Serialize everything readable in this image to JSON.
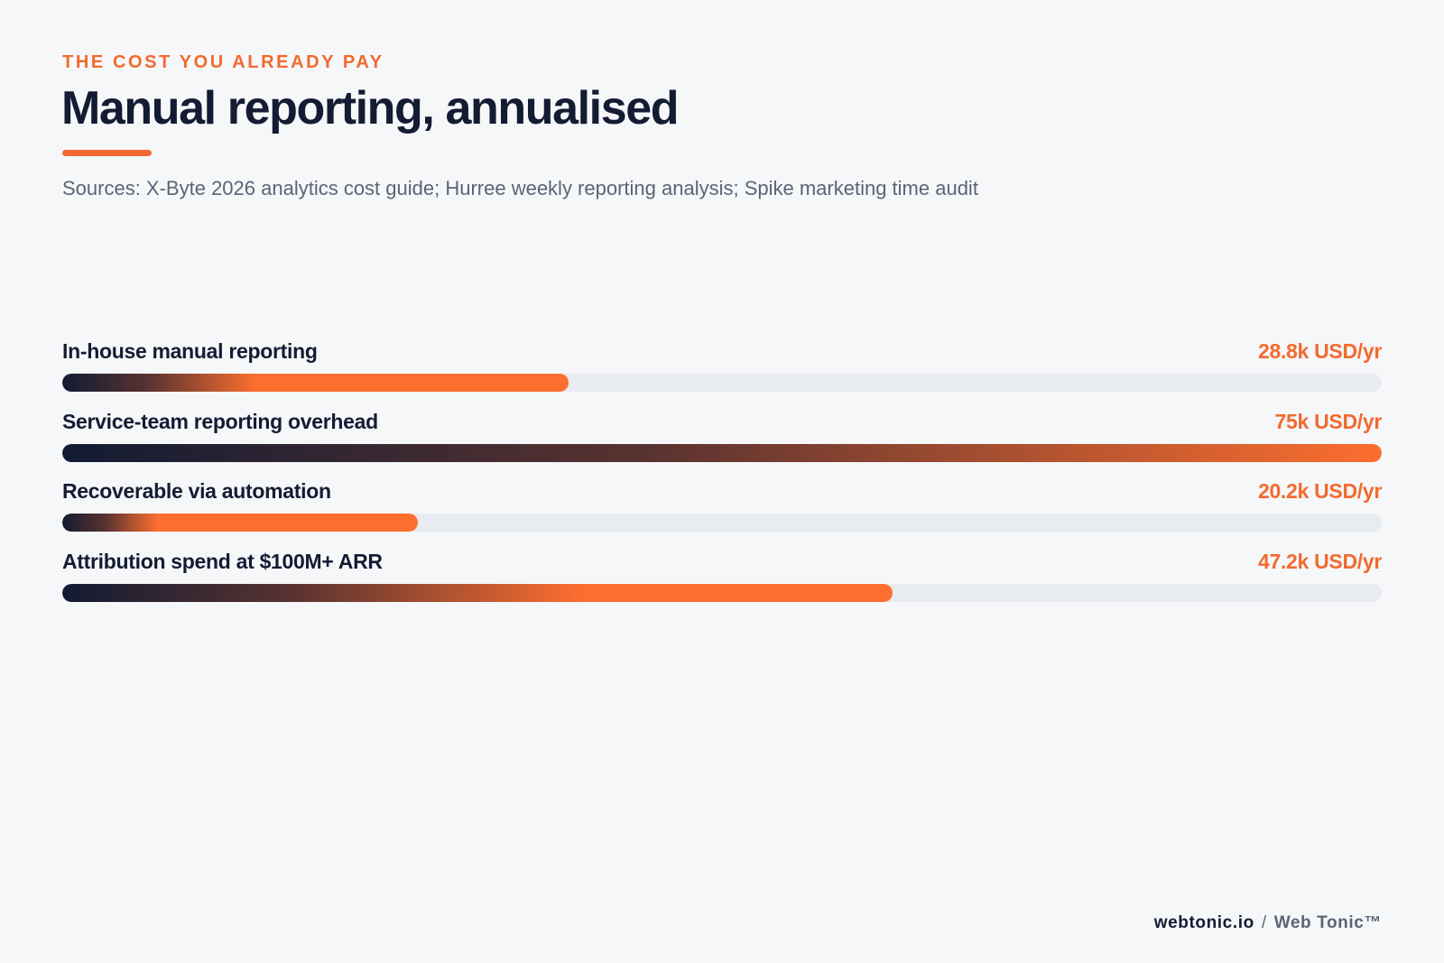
{
  "header": {
    "eyebrow": "THE COST YOU ALREADY PAY",
    "title": "Manual reporting, annualised",
    "sources": "Sources: X-Byte 2026 analytics cost guide; Hurree weekly reporting analysis; Spike marketing time audit"
  },
  "chart_data": {
    "type": "bar",
    "orientation": "horizontal",
    "title": "Manual reporting, annualised",
    "unit": "USD/yr",
    "xlim": [
      0,
      75
    ],
    "grid": false,
    "categories": [
      "In-house manual reporting",
      "Service-team reporting overhead",
      "Recoverable via automation",
      "Attribution spend at $100M+ ARR"
    ],
    "values": [
      28.8,
      75,
      20.2,
      47.2
    ],
    "value_labels": [
      "28.8k USD/yr",
      "75k USD/yr",
      "20.2k USD/yr",
      "47.2k USD/yr"
    ]
  },
  "colors": {
    "accent": "#f26a2e",
    "text_dark": "#131c33",
    "text_muted": "#5b6475",
    "track": "#e8ebef",
    "gradient_start": "#121b33",
    "gradient_end": "#fd6e2f"
  },
  "footer": {
    "site": "webtonic.io",
    "separator": "/",
    "brand": "Web Tonic™"
  }
}
